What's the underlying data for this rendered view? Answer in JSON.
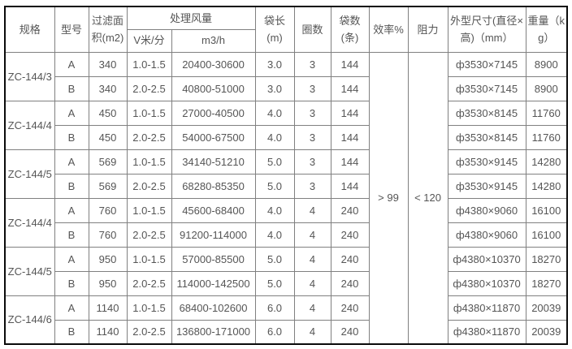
{
  "colors": {
    "text": "#555555",
    "border_inner": "#808080",
    "border_outer": "#0a0a0a",
    "background": "#ffffff"
  },
  "table": {
    "headers": {
      "spec": "规格",
      "model": "型号",
      "filter_area": "过滤面积(m2)",
      "air_volume": "处理风量",
      "velocity": "V米/分",
      "flow": "m3/h",
      "bag_length": "袋长(m)",
      "rings": "圈数",
      "bag_count": "袋数(条)",
      "efficiency": "效率%",
      "resistance": "阻力",
      "dimensions": "外型尺寸(直径×高)（mm）",
      "weight": "重量（kg）"
    },
    "efficiency_value": "> 99",
    "resistance_value": "< 120",
    "groups": [
      {
        "spec": "ZC-144/3",
        "rows": [
          {
            "model": "A",
            "area": "340",
            "v": "1.0-1.5",
            "m3h": "20400-30600",
            "bag": "3.0",
            "rings": "3",
            "bags": "144",
            "dim": "ф3530×7145",
            "weight": "8900"
          },
          {
            "model": "B",
            "area": "340",
            "v": "2.0-2.5",
            "m3h": "40800-51000",
            "bag": "3.0",
            "rings": "3",
            "bags": "144",
            "dim": "ф3530×7145",
            "weight": "8900"
          }
        ]
      },
      {
        "spec": "ZC-144/4",
        "rows": [
          {
            "model": "A",
            "area": "450",
            "v": "1.0-1.5",
            "m3h": "27000-40500",
            "bag": "4.0",
            "rings": "3",
            "bags": "144",
            "dim": "ф3530×8145",
            "weight": "11760"
          },
          {
            "model": "B",
            "area": "450",
            "v": "2.0-2.5",
            "m3h": "54000-67500",
            "bag": "4.0",
            "rings": "3",
            "bags": "144",
            "dim": "ф3530×8145",
            "weight": "11760"
          }
        ]
      },
      {
        "spec": "ZC-144/5",
        "rows": [
          {
            "model": "A",
            "area": "569",
            "v": "1.0-1.5",
            "m3h": "34140-51210",
            "bag": "5.0",
            "rings": "3",
            "bags": "144",
            "dim": "ф3530×9145",
            "weight": "14280"
          },
          {
            "model": "B",
            "area": "569",
            "v": "2.0-2.5",
            "m3h": "68280-85350",
            "bag": "5.0",
            "rings": "3",
            "bags": "144",
            "dim": "ф3530×9145",
            "weight": "14280"
          }
        ]
      },
      {
        "spec": "ZC-144/4",
        "rows": [
          {
            "model": "A",
            "area": "760",
            "v": "1.0-1.5",
            "m3h": "45600-68400",
            "bag": "4.0",
            "rings": "4",
            "bags": "240",
            "dim": "ф4380×9060",
            "weight": "16100"
          },
          {
            "model": "B",
            "area": "760",
            "v": "2.0-2.5",
            "m3h": "91200-114000",
            "bag": "4.0",
            "rings": "4",
            "bags": "240",
            "dim": "ф4380×9060",
            "weight": "16100"
          }
        ]
      },
      {
        "spec": "ZC-144/5",
        "rows": [
          {
            "model": "A",
            "area": "950",
            "v": "1.0-1.5",
            "m3h": "57000-85500",
            "bag": "5.0",
            "rings": "4",
            "bags": "240",
            "dim": "ф4380×10370",
            "weight": "18270"
          },
          {
            "model": "B",
            "area": "950",
            "v": "2.0-2.5",
            "m3h": "114000-142500",
            "bag": "5.0",
            "rings": "4",
            "bags": "240",
            "dim": "ф4380×10370",
            "weight": "18270"
          }
        ]
      },
      {
        "spec": "ZC-144/6",
        "rows": [
          {
            "model": "A",
            "area": "1140",
            "v": "1.0-1.5",
            "m3h": "68400-102600",
            "bag": "6.0",
            "rings": "4",
            "bags": "240",
            "dim": "ф4380×11870",
            "weight": "20039"
          },
          {
            "model": "B",
            "area": "1140",
            "v": "2.0-2.5",
            "m3h": "136800-171000",
            "bag": "6.0",
            "rings": "4",
            "bags": "240",
            "dim": "ф4380×11870",
            "weight": "20039"
          }
        ]
      }
    ]
  }
}
